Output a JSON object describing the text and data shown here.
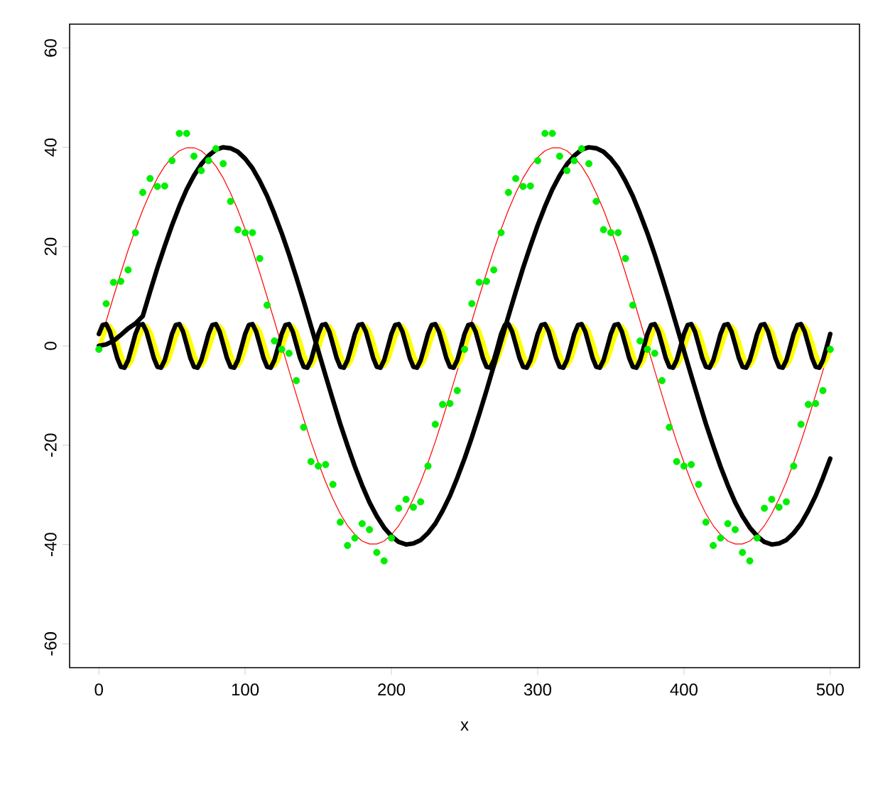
{
  "chart_data": {
    "type": "line",
    "xlabel": "x",
    "x": [
      0,
      5,
      10,
      15,
      20,
      25,
      30,
      35,
      40,
      45,
      50,
      55,
      60,
      65,
      70,
      75,
      80,
      85,
      90,
      95,
      100,
      105,
      110,
      115,
      120,
      125,
      130,
      135,
      140,
      145,
      150,
      155,
      160,
      165,
      170,
      175,
      180,
      185,
      190,
      195,
      200,
      205,
      210,
      215,
      220,
      225,
      230,
      235,
      240,
      245,
      250,
      255,
      260,
      265,
      270,
      275,
      280,
      285,
      290,
      295,
      300,
      305,
      310,
      315,
      320,
      325,
      330,
      335,
      340,
      345,
      350,
      355,
      360,
      365,
      370,
      375,
      380,
      385,
      390,
      395,
      400,
      405,
      410,
      415,
      420,
      425,
      430,
      435,
      440,
      445,
      450,
      455,
      460,
      465,
      470,
      475,
      480,
      485,
      490,
      495,
      500
    ],
    "xlim": [
      -20,
      520
    ],
    "ylim": [
      -64.8,
      64.8
    ],
    "xticks": [
      0,
      100,
      200,
      300,
      400,
      500
    ],
    "yticks": [
      -60,
      -40,
      -20,
      0,
      20,
      40,
      60
    ],
    "series": [
      {
        "color": "#ff0000",
        "values": [
          0,
          5.0,
          9.9,
          14.7,
          19.3,
          23.5,
          27.4,
          30.8,
          33.8,
          36.2,
          38.0,
          39.3,
          39.9,
          39.9,
          39.3,
          38.0,
          36.2,
          33.8,
          30.8,
          27.4,
          23.5,
          19.3,
          14.7,
          9.9,
          5.0,
          0,
          -5.0,
          -9.9,
          -14.7,
          -19.3,
          -23.5,
          -27.4,
          -30.8,
          -33.8,
          -36.2,
          -38.0,
          -39.3,
          -39.9,
          -39.9,
          -39.3,
          -38.0,
          -36.2,
          -33.8,
          -30.8,
          -27.4,
          -23.5,
          -19.3,
          -14.7,
          -9.9,
          -5.0,
          0,
          5.0,
          9.9,
          14.7,
          19.3,
          23.5,
          27.4,
          30.8,
          33.8,
          36.2,
          38.0,
          39.3,
          39.9,
          39.9,
          39.3,
          38.0,
          36.2,
          33.8,
          30.8,
          27.4,
          23.5,
          19.3,
          14.7,
          9.9,
          5.0,
          0,
          -5.0,
          -9.9,
          -14.7,
          -19.3,
          -23.5,
          -27.4,
          -30.8,
          -33.8,
          -36.2,
          -38.0,
          -39.3,
          -39.9,
          -39.9,
          -39.3,
          -38.0,
          -36.2,
          -33.8,
          -30.8,
          -27.4,
          -23.5,
          -19.3,
          -14.7,
          -9.9,
          -5.0,
          0
        ]
      },
      {
        "type": "scatter",
        "marker": "circle",
        "color": "#00ee00",
        "values": [
          -0.7,
          8.5,
          12.8,
          13.0,
          15.3,
          22.8,
          30.9,
          33.7,
          32.1,
          32.2,
          37.3,
          42.8,
          42.8,
          38.2,
          35.3,
          37.3,
          39.7,
          36.7,
          29.1,
          23.4,
          22.8,
          22.8,
          17.6,
          8.2,
          1.0,
          -0.7,
          -1.5,
          -7.0,
          -16.4,
          -23.3,
          -24.2,
          -23.9,
          -27.9,
          -35.5,
          -40.2,
          -38.7,
          -35.8,
          -37.0,
          -41.6,
          -43.3,
          -38.7,
          -32.7,
          -30.9,
          -32.5,
          -31.4,
          -24.2,
          -15.8,
          -11.8,
          -11.6,
          -9.0,
          -0.7,
          8.5,
          12.8,
          13.0,
          15.3,
          22.8,
          30.9,
          33.7,
          32.1,
          32.2,
          37.3,
          42.8,
          42.8,
          38.2,
          35.3,
          37.3,
          39.7,
          36.7,
          29.1,
          23.4,
          22.8,
          22.8,
          17.6,
          8.2,
          1.0,
          -0.7,
          -1.5,
          -7.0,
          -16.4,
          -23.3,
          -24.2,
          -23.9,
          -27.9,
          -35.5,
          -40.2,
          -38.7,
          -35.8,
          -37.0,
          -41.6,
          -43.3,
          -38.7,
          -32.7,
          -30.9,
          -32.5,
          -31.4,
          -24.2,
          -15.8,
          -11.8,
          -11.6,
          -9.0,
          -0.7
        ]
      },
      {
        "color": "#ffff00",
        "x": [
          0,
          2.5,
          5,
          7.5,
          10,
          12.5,
          15,
          17.5,
          20,
          22.5,
          25,
          27.5,
          30,
          32.5,
          35,
          37.5,
          40,
          42.5,
          45,
          47.5,
          50,
          52.5,
          55,
          57.5,
          60,
          62.5,
          65,
          67.5,
          70,
          72.5,
          75,
          77.5,
          80,
          82.5,
          85,
          87.5,
          90,
          92.5,
          95,
          97.5,
          100,
          102.5,
          105,
          107.5,
          110,
          112.5,
          115,
          117.5,
          120,
          122.5,
          125,
          127.5,
          130,
          132.5,
          135,
          137.5,
          140,
          142.5,
          145,
          147.5,
          150,
          152.5,
          155,
          157.5,
          160,
          162.5,
          165,
          167.5,
          170,
          172.5,
          175,
          177.5,
          180,
          182.5,
          185,
          187.5,
          190,
          192.5,
          195,
          197.5,
          200,
          202.5,
          205,
          207.5,
          210,
          212.5,
          215,
          217.5,
          220,
          222.5,
          225,
          227.5,
          230,
          232.5,
          235,
          237.5,
          240,
          242.5,
          245,
          247.5,
          250,
          252.5,
          255,
          257.5,
          260,
          262.5,
          265,
          267.5,
          270,
          272.5,
          275,
          277.5,
          280,
          282.5,
          285,
          287.5,
          290,
          292.5,
          295,
          297.5,
          300,
          302.5,
          305,
          307.5,
          310,
          312.5,
          315,
          317.5,
          320,
          322.5,
          325,
          327.5,
          330,
          332.5,
          335,
          337.5,
          340,
          342.5,
          345,
          347.5,
          350,
          352.5,
          355,
          357.5,
          360,
          362.5,
          365,
          367.5,
          370,
          372.5,
          375,
          377.5,
          380,
          382.5,
          385,
          387.5,
          390,
          392.5,
          395,
          397.5,
          400,
          402.5,
          405,
          407.5,
          410,
          412.5,
          415,
          417.5,
          420,
          422.5,
          425,
          427.5,
          430,
          432.5,
          435,
          437.5,
          440,
          442.5,
          445,
          447.5,
          450,
          452.5,
          455,
          457.5,
          460,
          462.5,
          465,
          467.5,
          470,
          472.5,
          475,
          477.5,
          480,
          482.5,
          485,
          487.5,
          490,
          492.5,
          495,
          497.5,
          500
        ],
        "values": [
          -0.7,
          1.7,
          3.5,
          4.0,
          2.9,
          0.7,
          -1.7,
          -3.5,
          -4.0,
          -2.9,
          -0.7,
          1.7,
          3.5,
          4.0,
          2.9,
          0.7,
          -1.7,
          -3.5,
          -4.0,
          -2.9,
          -0.7,
          1.7,
          3.5,
          4.0,
          2.9,
          0.7,
          -1.7,
          -3.5,
          -4.0,
          -2.9,
          -0.7,
          1.7,
          3.5,
          4.0,
          2.9,
          0.7,
          -1.7,
          -3.5,
          -4.0,
          -2.9,
          -0.7,
          1.7,
          3.5,
          4.0,
          2.9,
          0.7,
          -1.7,
          -3.5,
          -4.0,
          -2.9,
          -0.7,
          1.7,
          3.5,
          4.0,
          2.9,
          0.7,
          -1.7,
          -3.5,
          -4.0,
          -2.9,
          -0.7,
          1.7,
          3.5,
          4.0,
          2.9,
          0.7,
          -1.7,
          -3.5,
          -4.0,
          -2.9,
          -0.7,
          1.7,
          3.5,
          4.0,
          2.9,
          0.7,
          -1.7,
          -3.5,
          -4.0,
          -2.9,
          -0.7,
          1.7,
          3.5,
          4.0,
          2.9,
          0.7,
          -1.7,
          -3.5,
          -4.0,
          -2.9,
          -0.7,
          1.7,
          3.5,
          4.0,
          2.9,
          0.7,
          -1.7,
          -3.5,
          -4.0,
          -2.9,
          -0.7,
          1.7,
          3.5,
          4.0,
          2.9,
          0.7,
          -1.7,
          -3.5,
          -4.0,
          -2.9,
          -0.7,
          1.7,
          3.5,
          4.0,
          2.9,
          0.7,
          -1.7,
          -3.5,
          -4.0,
          -2.9,
          -0.7,
          1.7,
          3.5,
          4.0,
          2.9,
          0.7,
          -1.7,
          -3.5,
          -4.0,
          -2.9,
          -0.7,
          1.7,
          3.5,
          4.0,
          2.9,
          0.7,
          -1.7,
          -3.5,
          -4.0,
          -2.9,
          -0.7,
          1.7,
          3.5,
          4.0,
          2.9,
          0.7,
          -1.7,
          -3.5,
          -4.0,
          -2.9,
          -0.7,
          1.7,
          3.5,
          4.0,
          2.9,
          0.7,
          -1.7,
          -3.5,
          -4.0,
          -2.9,
          -0.7,
          1.7,
          3.5,
          4.0,
          2.9,
          0.7,
          -1.7,
          -3.5,
          -4.0,
          -2.9,
          -0.7,
          1.7,
          3.5,
          4.0,
          2.9,
          0.7,
          -1.7,
          -3.5,
          -4.0,
          -2.9,
          -0.7,
          1.7,
          3.5,
          4.0,
          2.9,
          0.7,
          -1.7,
          -3.5,
          -4.0,
          -2.9,
          -0.7,
          1.7,
          3.5,
          4.0,
          2.9,
          0.7,
          -1.7,
          -3.5,
          -4.0,
          -2.9,
          -0.7
        ]
      },
      {
        "type": "line",
        "color": "#000000",
        "values": [
          0,
          0.3,
          1.0,
          2.2,
          3.5,
          4.5,
          6.0,
          10.9,
          15.7,
          20.1,
          24.3,
          28.1,
          31.5,
          34.3,
          36.6,
          38.3,
          39.5,
          40.0,
          39.8,
          39.1,
          37.7,
          35.8,
          33.2,
          30.2,
          26.6,
          22.7,
          18.4,
          13.8,
          9.0,
          4.0,
          -1.0,
          -6.0,
          -10.9,
          -15.7,
          -20.1,
          -24.3,
          -28.1,
          -31.5,
          -34.3,
          -36.6,
          -38.3,
          -39.5,
          -40.0,
          -39.8,
          -39.1,
          -37.7,
          -35.8,
          -33.2,
          -30.2,
          -26.6,
          -22.7,
          -18.4,
          -13.8,
          -9.0,
          -4.0,
          1.0,
          6.0,
          10.9,
          15.7,
          20.1,
          24.3,
          28.1,
          31.5,
          34.3,
          36.6,
          38.3,
          39.5,
          40.0,
          39.8,
          39.1,
          37.7,
          35.8,
          33.2,
          30.2,
          26.6,
          22.7,
          18.4,
          13.8,
          9.0,
          4.0,
          -1.0,
          -6.0,
          -10.9,
          -15.7,
          -20.1,
          -24.3,
          -28.1,
          -31.5,
          -34.3,
          -36.6,
          -38.3,
          -39.5,
          -40.0,
          -39.8,
          -39.1,
          -37.7,
          -35.8,
          -33.2,
          -30.2,
          -26.6,
          -22.7
        ]
      },
      {
        "type": "line",
        "color": "#000000",
        "x": [
          0,
          2.5,
          5,
          7.5,
          10,
          12.5,
          15,
          17.5,
          20,
          22.5,
          25,
          27.5,
          30,
          32.5,
          35,
          37.5,
          40,
          42.5,
          45,
          47.5,
          50,
          52.5,
          55,
          57.5,
          60,
          62.5,
          65,
          67.5,
          70,
          72.5,
          75,
          77.5,
          80,
          82.5,
          85,
          87.5,
          90,
          92.5,
          95,
          97.5,
          100,
          102.5,
          105,
          107.5,
          110,
          112.5,
          115,
          117.5,
          120,
          122.5,
          125,
          127.5,
          130,
          132.5,
          135,
          137.5,
          140,
          142.5,
          145,
          147.5,
          150,
          152.5,
          155,
          157.5,
          160,
          162.5,
          165,
          167.5,
          170,
          172.5,
          175,
          177.5,
          180,
          182.5,
          185,
          187.5,
          190,
          192.5,
          195,
          197.5,
          200,
          202.5,
          205,
          207.5,
          210,
          212.5,
          215,
          217.5,
          220,
          222.5,
          225,
          227.5,
          230,
          232.5,
          235,
          237.5,
          240,
          242.5,
          245,
          247.5,
          250,
          252.5,
          255,
          257.5,
          260,
          262.5,
          265,
          267.5,
          270,
          272.5,
          275,
          277.5,
          280,
          282.5,
          285,
          287.5,
          290,
          292.5,
          295,
          297.5,
          300,
          302.5,
          305,
          307.5,
          310,
          312.5,
          315,
          317.5,
          320,
          322.5,
          325,
          327.5,
          330,
          332.5,
          335,
          337.5,
          340,
          342.5,
          345,
          347.5,
          350,
          352.5,
          355,
          357.5,
          360,
          362.5,
          365,
          367.5,
          370,
          372.5,
          375,
          377.5,
          380,
          382.5,
          385,
          387.5,
          390,
          392.5,
          395,
          397.5,
          400,
          402.5,
          405,
          407.5,
          410,
          412.5,
          415,
          417.5,
          420,
          422.5,
          425,
          427.5,
          430,
          432.5,
          435,
          437.5,
          440,
          442.5,
          445,
          447.5,
          450,
          452.5,
          455,
          457.5,
          460,
          462.5,
          465,
          467.5,
          470,
          472.5,
          475,
          477.5,
          480,
          482.5,
          485,
          487.5,
          490,
          492.5,
          495,
          497.5,
          500
        ],
        "values": [
          2.4,
          4.2,
          4.4,
          2.9,
          0.3,
          -2.4,
          -4.2,
          -4.4,
          -2.9,
          -0.3,
          2.4,
          4.2,
          4.4,
          2.9,
          0.3,
          -2.4,
          -4.2,
          -4.4,
          -2.9,
          -0.3,
          2.4,
          4.2,
          4.4,
          2.9,
          0.3,
          -2.4,
          -4.2,
          -4.4,
          -2.9,
          -0.3,
          2.4,
          4.2,
          4.4,
          2.9,
          0.3,
          -2.4,
          -4.2,
          -4.4,
          -2.9,
          -0.3,
          2.4,
          4.2,
          4.4,
          2.9,
          0.3,
          -2.4,
          -4.2,
          -4.4,
          -2.9,
          -0.3,
          2.4,
          4.2,
          4.4,
          2.9,
          0.3,
          -2.4,
          -4.2,
          -4.4,
          -2.9,
          -0.3,
          2.4,
          4.2,
          4.4,
          2.9,
          0.3,
          -2.4,
          -4.2,
          -4.4,
          -2.9,
          -0.3,
          2.4,
          4.2,
          4.4,
          2.9,
          0.3,
          -2.4,
          -4.2,
          -4.4,
          -2.9,
          -0.3,
          2.4,
          4.2,
          4.4,
          2.9,
          0.3,
          -2.4,
          -4.2,
          -4.4,
          -2.9,
          -0.3,
          2.4,
          4.2,
          4.4,
          2.9,
          0.3,
          -2.4,
          -4.2,
          -4.4,
          -2.9,
          -0.3,
          2.4,
          4.2,
          4.4,
          2.9,
          0.3,
          -2.4,
          -4.2,
          -4.4,
          -2.9,
          -0.3,
          2.4,
          4.2,
          4.4,
          2.9,
          0.3,
          -2.4,
          -4.2,
          -4.4,
          -2.9,
          -0.3,
          2.4,
          4.2,
          4.4,
          2.9,
          0.3,
          -2.4,
          -4.2,
          -4.4,
          -2.9,
          -0.3,
          2.4,
          4.2,
          4.4,
          2.9,
          0.3,
          -2.4,
          -4.2,
          -4.4,
          -2.9,
          -0.3,
          2.4,
          4.2,
          4.4,
          2.9,
          0.3,
          -2.4,
          -4.2,
          -4.4,
          -2.9,
          -0.3,
          2.4,
          4.2,
          4.4,
          2.9,
          0.3,
          -2.4,
          -4.2,
          -4.4,
          -2.9,
          -0.3,
          2.4,
          4.2,
          4.4,
          2.9,
          0.3,
          -2.4,
          -4.2,
          -4.4,
          -2.9,
          -0.3,
          2.4,
          4.2,
          4.4,
          2.9,
          0.3,
          -2.4,
          -4.2,
          -4.4,
          -2.9,
          -0.3,
          2.4,
          4.2,
          4.4,
          2.9,
          0.3,
          -2.4,
          -4.2,
          -4.4,
          -2.9,
          -0.3,
          2.4,
          4.2,
          4.4,
          2.9,
          0.3,
          -2.4,
          -4.2,
          -4.4,
          -2.9,
          -0.3,
          2.4
        ]
      }
    ]
  }
}
